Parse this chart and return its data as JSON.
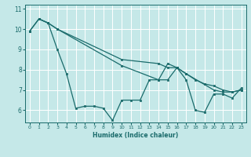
{
  "xlabel": "Humidex (Indice chaleur)",
  "background_color": "#c5e8e8",
  "line_color": "#1a6b6b",
  "grid_color": "#ffffff",
  "xlim": [
    -0.5,
    23.5
  ],
  "ylim": [
    5.4,
    11.2
  ],
  "yticks": [
    6,
    7,
    8,
    9,
    10,
    11
  ],
  "xticks": [
    0,
    1,
    2,
    3,
    4,
    5,
    6,
    7,
    8,
    9,
    10,
    11,
    12,
    13,
    14,
    15,
    16,
    17,
    18,
    19,
    20,
    21,
    22,
    23
  ],
  "series": [
    {
      "x": [
        0,
        1,
        2,
        3,
        4,
        5,
        6,
        7,
        8,
        9,
        10,
        11,
        12,
        13,
        14,
        15,
        16,
        17,
        18,
        19,
        20,
        21,
        22,
        23
      ],
      "y": [
        9.9,
        10.5,
        10.3,
        9.0,
        7.8,
        6.1,
        6.2,
        6.2,
        6.1,
        5.5,
        6.5,
        6.5,
        6.5,
        7.5,
        7.5,
        8.3,
        8.1,
        7.5,
        6.0,
        5.9,
        6.8,
        6.8,
        6.6,
        7.1
      ]
    },
    {
      "x": [
        0,
        1,
        2,
        3,
        10,
        14,
        15,
        16,
        17,
        18,
        19,
        20,
        21,
        22,
        23
      ],
      "y": [
        9.9,
        10.5,
        10.3,
        10.0,
        8.5,
        8.3,
        8.1,
        8.1,
        7.8,
        7.5,
        7.3,
        7.2,
        7.0,
        6.9,
        7.0
      ]
    },
    {
      "x": [
        1,
        2,
        3,
        10,
        14,
        15,
        16,
        17,
        20,
        21,
        22,
        23
      ],
      "y": [
        10.5,
        10.3,
        10.0,
        8.2,
        7.5,
        7.5,
        8.1,
        7.8,
        7.0,
        6.9,
        6.9,
        7.0
      ]
    }
  ]
}
